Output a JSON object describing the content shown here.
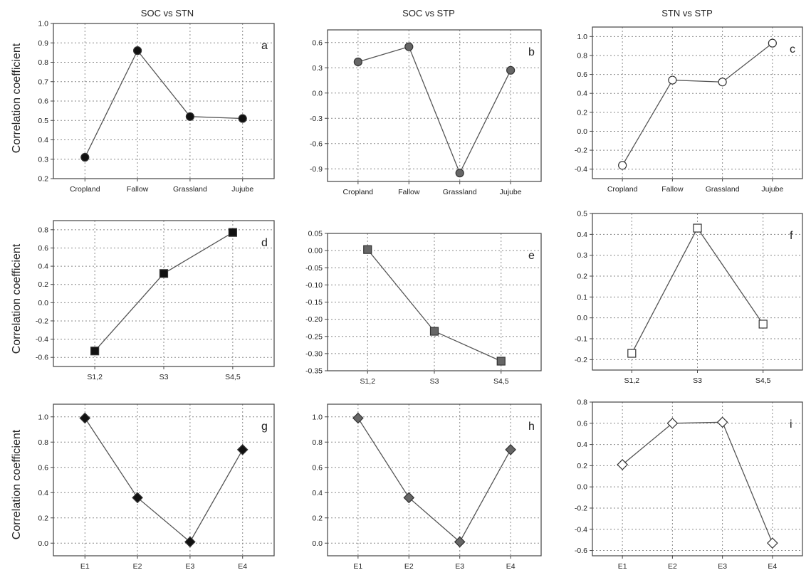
{
  "column_titles": [
    "SOC vs STN",
    "SOC vs STP",
    "STN vs STP"
  ],
  "ylabel": "Correlation coefficient",
  "chart_data": [
    {
      "id": "a",
      "type": "line",
      "panel_label": "a",
      "categories": [
        "Cropland",
        "Fallow",
        "Grassland",
        "Jujube"
      ],
      "values": [
        0.31,
        0.86,
        0.52,
        0.51
      ],
      "ylim": [
        0.2,
        1.0
      ],
      "yticks": [
        "0.2",
        "0.3",
        "0.4",
        "0.5",
        "0.6",
        "0.7",
        "0.8",
        "0.9",
        "1.0"
      ],
      "marker": "circle",
      "marker_color": "#111111",
      "grid": true
    },
    {
      "id": "b",
      "type": "line",
      "panel_label": "b",
      "categories": [
        "Cropland",
        "Fallow",
        "Grassland",
        "Jujube"
      ],
      "values": [
        0.37,
        0.55,
        -0.95,
        0.27
      ],
      "ylim": [
        -1.05,
        0.75
      ],
      "yticks": [
        "-0.9",
        "-0.6",
        "-0.3",
        "0.0",
        "0.3",
        "0.6"
      ],
      "marker": "circle",
      "marker_color": "#666666",
      "grid": true
    },
    {
      "id": "c",
      "type": "line",
      "panel_label": "c",
      "categories": [
        "Cropland",
        "Fallow",
        "Grassland",
        "Jujube"
      ],
      "values": [
        -0.36,
        0.54,
        0.52,
        0.93
      ],
      "ylim": [
        -0.5,
        1.1
      ],
      "yticks": [
        "-0.4",
        "-0.2",
        "0.0",
        "0.2",
        "0.4",
        "0.6",
        "0.8",
        "1.0"
      ],
      "marker": "circle-open",
      "marker_color": "#ffffff",
      "grid": true
    },
    {
      "id": "d",
      "type": "line",
      "panel_label": "d",
      "categories": [
        "S1,2",
        "S3",
        "S4,5"
      ],
      "values": [
        -0.53,
        0.32,
        0.77
      ],
      "ylim": [
        -0.7,
        0.9
      ],
      "yticks": [
        "-0.6",
        "-0.4",
        "-0.2",
        "0.0",
        "0.2",
        "0.4",
        "0.6",
        "0.8"
      ],
      "marker": "square",
      "marker_color": "#111111",
      "grid": true
    },
    {
      "id": "e",
      "type": "line",
      "panel_label": "e",
      "categories": [
        "S1,2",
        "S3",
        "S4,5"
      ],
      "values": [
        0.003,
        -0.235,
        -0.322
      ],
      "ylim": [
        -0.35,
        0.05
      ],
      "yticks": [
        "-0.35",
        "-0.30",
        "-0.25",
        "-0.20",
        "-0.15",
        "-0.10",
        "-0.05",
        "0.00",
        "0.05"
      ],
      "marker": "square",
      "marker_color": "#666666",
      "grid": true
    },
    {
      "id": "f",
      "type": "line",
      "panel_label": "f",
      "categories": [
        "S1,2",
        "S3",
        "S4,5"
      ],
      "values": [
        -0.17,
        0.43,
        -0.03
      ],
      "ylim": [
        -0.25,
        0.5
      ],
      "yticks": [
        "-0.2",
        "-0.1",
        "0.0",
        "0.1",
        "0.2",
        "0.3",
        "0.4",
        "0.5"
      ],
      "marker": "square-open",
      "marker_color": "#ffffff",
      "grid": true
    },
    {
      "id": "g",
      "type": "line",
      "panel_label": "g",
      "categories": [
        "E1",
        "E2",
        "E3",
        "E4"
      ],
      "values": [
        0.99,
        0.36,
        0.01,
        0.74
      ],
      "ylim": [
        -0.1,
        1.1
      ],
      "yticks": [
        "0.0",
        "0.2",
        "0.4",
        "0.6",
        "0.8",
        "1.0"
      ],
      "marker": "diamond",
      "marker_color": "#111111",
      "grid": true
    },
    {
      "id": "h",
      "type": "line",
      "panel_label": "h",
      "categories": [
        "E1",
        "E2",
        "E3",
        "E4"
      ],
      "values": [
        0.99,
        0.36,
        0.01,
        0.74
      ],
      "ylim": [
        -0.1,
        1.1
      ],
      "yticks": [
        "0.0",
        "0.2",
        "0.4",
        "0.6",
        "0.8",
        "1.0"
      ],
      "marker": "diamond",
      "marker_color": "#666666",
      "grid": true
    },
    {
      "id": "i",
      "type": "line",
      "panel_label": "i",
      "categories": [
        "E1",
        "E2",
        "E3",
        "E4"
      ],
      "values": [
        0.21,
        0.6,
        0.61,
        -0.53
      ],
      "ylim": [
        -0.65,
        0.8
      ],
      "yticks": [
        "-0.6",
        "-0.4",
        "-0.2",
        "0.0",
        "0.2",
        "0.4",
        "0.6",
        "0.8"
      ],
      "marker": "diamond-open",
      "marker_color": "#ffffff",
      "grid": true
    }
  ]
}
